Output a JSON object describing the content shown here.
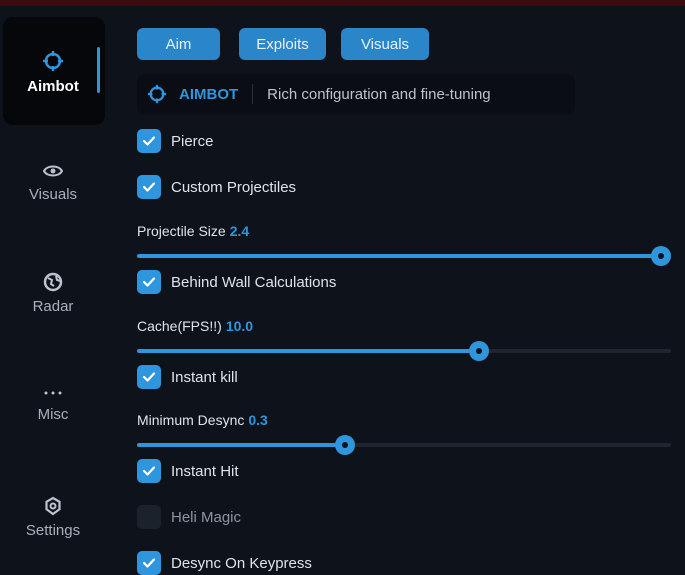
{
  "sidebar": {
    "items": [
      {
        "label": "Aimbot",
        "icon": "crosshair-icon",
        "active": true
      },
      {
        "label": "Visuals",
        "icon": "eye-icon"
      },
      {
        "label": "Radar",
        "icon": "globe-icon"
      },
      {
        "label": "Misc",
        "icon": "ellipsis-icon"
      },
      {
        "label": "Settings",
        "icon": "gear-icon"
      }
    ]
  },
  "tabs": [
    {
      "label": "Aim"
    },
    {
      "label": "Exploits"
    },
    {
      "label": "Visuals"
    }
  ],
  "header": {
    "title": "AIMBOT",
    "description": "Rich configuration and fine-tuning"
  },
  "options": {
    "pierce": {
      "label": "Pierce",
      "checked": true
    },
    "custom_projectiles": {
      "label": "Custom Projectiles",
      "checked": true
    },
    "projectile_size": {
      "label": "Projectile Size",
      "value": "2.4",
      "fraction": 1.0
    },
    "behind_wall": {
      "label": "Behind Wall Calculations",
      "checked": true
    },
    "cache": {
      "label": "Cache(FPS!!)",
      "value": "10.0",
      "fraction": 0.64
    },
    "instant_kill": {
      "label": "Instant kill",
      "checked": true
    },
    "min_desync": {
      "label": "Minimum Desync",
      "value": "0.3",
      "fraction": 0.39
    },
    "instant_hit": {
      "label": "Instant Hit",
      "checked": true
    },
    "heli_magic": {
      "label": "Heli Magic",
      "checked": false
    },
    "desync_keypress": {
      "label": "Desync On Keypress",
      "checked": true
    }
  },
  "colors": {
    "accent": "#2f95dc",
    "background": "#0e131b"
  }
}
